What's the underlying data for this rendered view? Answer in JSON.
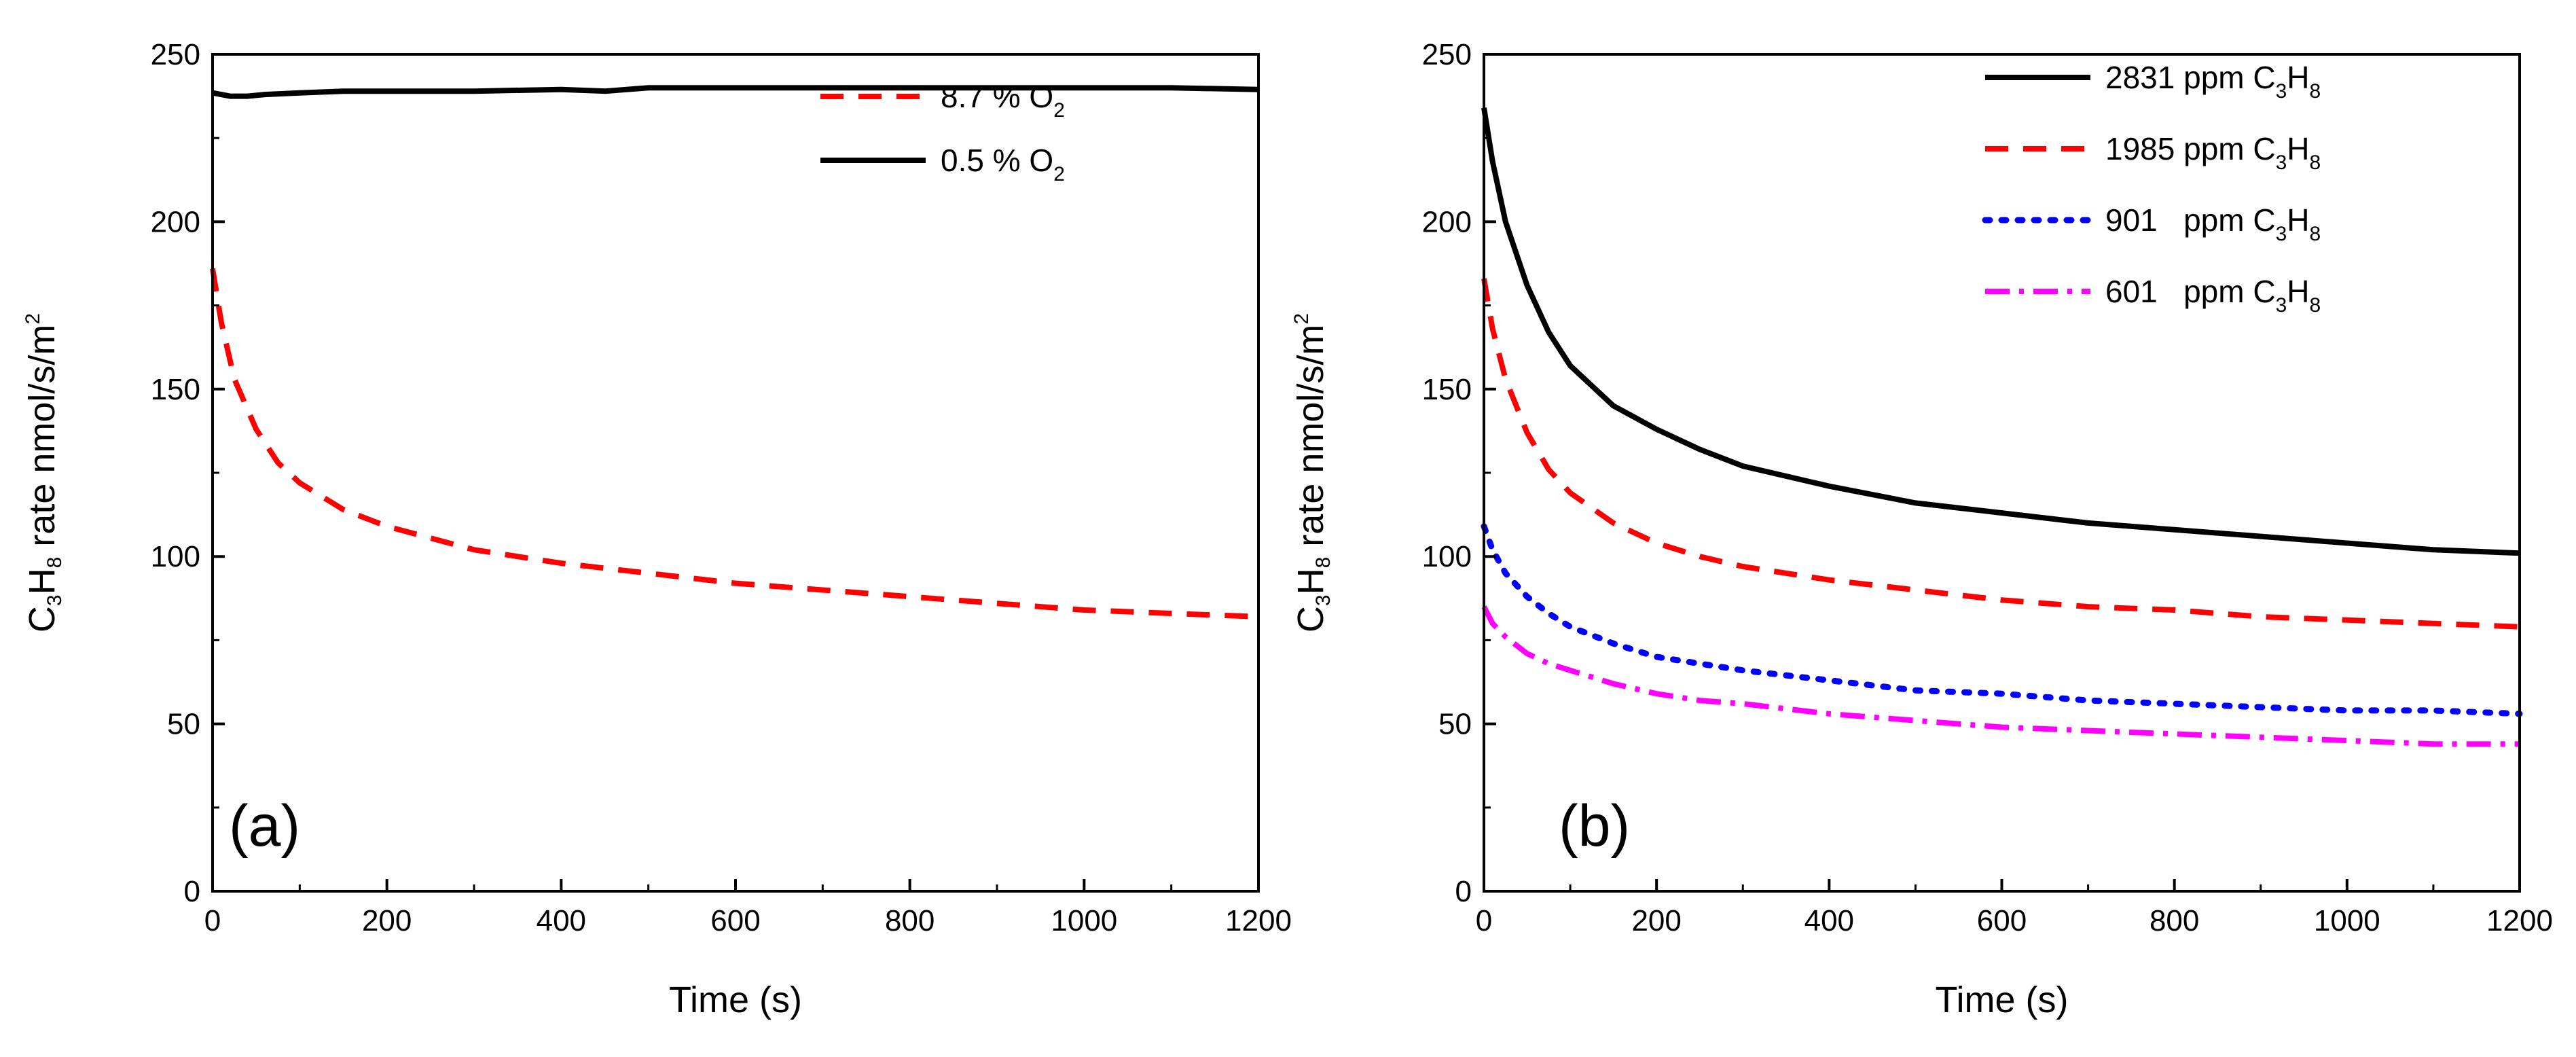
{
  "chart_data": [
    {
      "type": "line",
      "panel_label": "(a)",
      "xlabel": "Time (s)",
      "ylabel": {
        "prefix": "C",
        "sub1": "3",
        "mid": "H",
        "sub2": "8",
        "rest": " rate nmol/s/m",
        "sup": "2"
      },
      "xlim": [
        0,
        1200
      ],
      "ylim": [
        0,
        250
      ],
      "xticks": [
        "0",
        "200",
        "400",
        "600",
        "800",
        "1000",
        "1200"
      ],
      "yticks": [
        "0",
        "50",
        "100",
        "150",
        "200",
        "250"
      ],
      "legend_position": "top-right",
      "series": [
        {
          "name": "8.7 % O2",
          "legend": {
            "main": "8.7 % O",
            "sub": "2"
          },
          "color": "#ff0000",
          "style": "dash",
          "x": [
            0,
            10,
            25,
            50,
            75,
            100,
            150,
            200,
            300,
            400,
            500,
            600,
            700,
            800,
            900,
            1000,
            1100,
            1200
          ],
          "y": [
            186,
            170,
            153,
            138,
            128,
            122,
            114,
            109,
            102,
            98,
            95,
            92,
            90,
            88,
            86,
            84,
            83,
            82
          ]
        },
        {
          "name": "0.5 % O2",
          "legend": {
            "main": "0.5 % O",
            "sub": "2"
          },
          "color": "#000000",
          "style": "solid",
          "x": [
            0,
            20,
            40,
            60,
            100,
            150,
            200,
            250,
            300,
            400,
            450,
            500,
            600,
            700,
            800,
            900,
            1000,
            1100,
            1200
          ],
          "y": [
            238.5,
            237.5,
            237.5,
            238,
            238.5,
            239,
            239,
            239,
            239,
            239.5,
            239,
            240,
            240,
            240,
            240,
            240,
            240,
            240,
            239.5
          ]
        }
      ]
    },
    {
      "type": "line",
      "panel_label": "(b)",
      "xlabel": "Time (s)",
      "ylabel": {
        "prefix": "C",
        "sub1": "3",
        "mid": "H",
        "sub2": "8",
        "rest": " rate nmol/s/m",
        "sup": "2"
      },
      "xlim": [
        0,
        1200
      ],
      "ylim": [
        0,
        250
      ],
      "xticks": [
        "0",
        "200",
        "400",
        "600",
        "800",
        "1000",
        "1200"
      ],
      "yticks": [
        "0",
        "50",
        "100",
        "150",
        "200",
        "250"
      ],
      "legend_position": "top-right",
      "series": [
        {
          "name": "2831 ppm C3H8",
          "legend": {
            "main": "2831 ppm C",
            "sub1": "3",
            "mid": "H",
            "sub2": "8"
          },
          "color": "#000000",
          "style": "solid",
          "x": [
            0,
            10,
            25,
            50,
            75,
            100,
            150,
            200,
            250,
            300,
            400,
            500,
            600,
            700,
            800,
            900,
            1000,
            1100,
            1200
          ],
          "y": [
            234,
            218,
            200,
            181,
            167,
            157,
            145,
            138,
            132,
            127,
            121,
            116,
            113,
            110,
            108,
            106,
            104,
            102,
            101
          ]
        },
        {
          "name": "1985 ppm C3H8",
          "legend": {
            "main": "1985 ppm C",
            "sub1": "3",
            "mid": "H",
            "sub2": "8"
          },
          "color": "#ff0000",
          "style": "dash",
          "x": [
            0,
            10,
            25,
            50,
            75,
            100,
            150,
            200,
            250,
            300,
            400,
            500,
            600,
            700,
            800,
            900,
            1000,
            1100,
            1200
          ],
          "y": [
            183,
            168,
            153,
            137,
            126,
            119,
            110,
            104,
            100,
            97,
            93,
            90,
            87,
            85,
            84,
            82,
            81,
            80,
            79
          ]
        },
        {
          "name": "901 ppm C3H8",
          "legend": {
            "main": "901   ppm C",
            "sub1": "3",
            "mid": "H",
            "sub2": "8"
          },
          "color": "#0000ff",
          "style": "dot",
          "x": [
            0,
            10,
            25,
            50,
            75,
            100,
            150,
            200,
            250,
            300,
            400,
            500,
            600,
            700,
            800,
            900,
            1000,
            1100,
            1200
          ],
          "y": [
            109,
            102,
            95,
            88,
            83,
            79,
            74,
            70,
            68,
            66,
            63,
            60,
            59,
            57,
            56,
            55,
            54,
            54,
            53
          ]
        },
        {
          "name": "601 ppm C3H8",
          "legend": {
            "main": "601   ppm C",
            "sub1": "3",
            "mid": "H",
            "sub2": "8"
          },
          "color": "#ff00ff",
          "style": "dashdot",
          "x": [
            0,
            10,
            25,
            50,
            75,
            100,
            150,
            200,
            250,
            300,
            400,
            500,
            600,
            700,
            800,
            900,
            1000,
            1100,
            1200
          ],
          "y": [
            85,
            80,
            76,
            71,
            68,
            66,
            62,
            59,
            57,
            56,
            53,
            51,
            49,
            48,
            47,
            46,
            45,
            44,
            44
          ]
        }
      ]
    }
  ]
}
